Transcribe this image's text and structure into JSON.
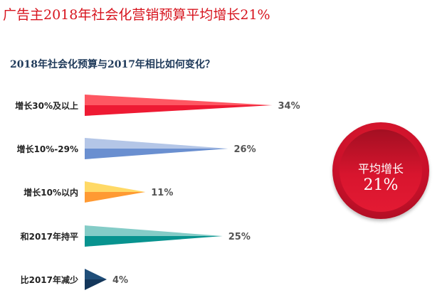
{
  "title": "广告主2018年社会化营销预算平均增长21%",
  "subtitle": "2018年社会化预算与2017年相比如何变化？",
  "badge": {
    "label": "平均增长",
    "value": "21%"
  },
  "chart_data": {
    "type": "bar",
    "orientation": "horizontal",
    "title": "2018年社会化预算与2017年相比如何变化？",
    "categories": [
      "增长30%及以上",
      "增长10%-29%",
      "增长10%以内",
      "和2017年持平",
      "比2017年减少"
    ],
    "values": [
      34,
      26,
      11,
      25,
      4
    ],
    "value_labels": [
      "34%",
      "26%",
      "11%",
      "25%",
      "4%"
    ],
    "colors": [
      [
        "#fe5762",
        "#ee1a33"
      ],
      [
        "#b4c6e7",
        "#6a8fd0"
      ],
      [
        "#ffd966",
        "#ff9a33"
      ],
      [
        "#84ccc7",
        "#08938f"
      ],
      [
        "#1f4e79",
        "#13365a"
      ]
    ],
    "unit": "%"
  }
}
